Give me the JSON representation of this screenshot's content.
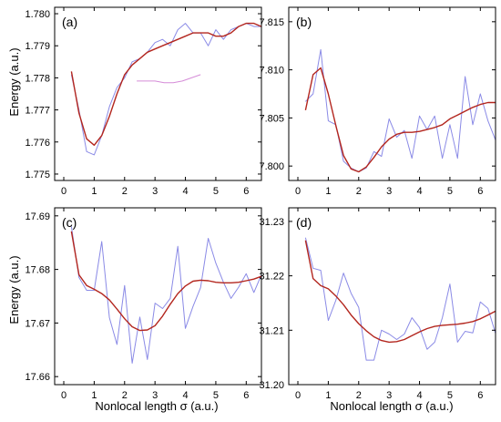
{
  "colors": {
    "raw_series": "#8a8ae6",
    "smooth_series": "#b3261e",
    "axes": "#000000"
  },
  "labels": {
    "ylabel_top": "Energy (a.u.)",
    "ylabel_bottom": "Energy (a.u.)",
    "xlabel_left": "Nonlocal length σ (a.u.)",
    "xlabel_right": "Nonlocal length σ (a.u.)"
  },
  "chart_data": [
    {
      "panel": "(a)",
      "type": "line",
      "xlim": [
        -0.3,
        6.5
      ],
      "ylim": [
        1.7748,
        1.7802
      ],
      "xticks": [
        0,
        1,
        2,
        3,
        4,
        5,
        6
      ],
      "yticks": [
        1.775,
        1.776,
        1.777,
        1.778,
        1.779,
        1.78
      ],
      "ytick_labels": [
        "1.775",
        "1.776",
        "1.777",
        "1.778",
        "1.779",
        "1.780"
      ],
      "series": [
        {
          "x": [
            0.25,
            0.5,
            0.75,
            1.0,
            1.25,
            1.5,
            1.75,
            2.0,
            2.25,
            2.5,
            2.75,
            3.0,
            3.25,
            3.5,
            3.75,
            4.0,
            4.25,
            4.5,
            4.75,
            5.0,
            5.25,
            5.5,
            5.75,
            6.0,
            6.25,
            6.5
          ],
          "y": [
            1.7781,
            1.777,
            1.7757,
            1.7756,
            1.7762,
            1.7771,
            1.7777,
            1.778,
            1.7785,
            1.7786,
            1.7788,
            1.7791,
            1.7792,
            1.779,
            1.7795,
            1.7797,
            1.7794,
            1.7794,
            1.779,
            1.7795,
            1.7792,
            1.7795,
            1.7796,
            1.7797,
            1.7796,
            1.7796
          ]
        },
        {
          "x": [
            0.25,
            0.5,
            0.75,
            1.0,
            1.25,
            1.5,
            1.75,
            2.0,
            2.25,
            2.5,
            2.75,
            3.0,
            3.25,
            3.5,
            3.75,
            4.0,
            4.25,
            4.5,
            4.75,
            5.0,
            5.25,
            5.5,
            5.75,
            6.0,
            6.25,
            6.5
          ],
          "y": [
            1.7782,
            1.7769,
            1.7761,
            1.7759,
            1.7762,
            1.7768,
            1.7775,
            1.7781,
            1.7784,
            1.7786,
            1.7788,
            1.7789,
            1.779,
            1.7791,
            1.7792,
            1.7793,
            1.7794,
            1.7794,
            1.7794,
            1.7793,
            1.7793,
            1.7794,
            1.7796,
            1.7797,
            1.7797,
            1.7796
          ]
        },
        {
          "x": [
            2.4,
            2.7,
            3.0,
            3.3,
            3.6,
            3.9,
            4.2,
            4.5
          ],
          "y": [
            1.7779,
            1.7779,
            1.7779,
            1.77785,
            1.77785,
            1.7779,
            1.778,
            1.7781
          ]
        }
      ]
    },
    {
      "panel": "(b)",
      "type": "line",
      "xlim": [
        -0.3,
        6.5
      ],
      "ylim": [
        7.7985,
        7.8165
      ],
      "xticks": [
        0,
        1,
        2,
        3,
        4,
        5,
        6
      ],
      "yticks": [
        7.8,
        7.805,
        7.81,
        7.815
      ],
      "ytick_labels": [
        "7.800",
        "7.805",
        "7.810",
        "7.815"
      ],
      "series": [
        {
          "x": [
            0.25,
            0.5,
            0.75,
            1.0,
            1.25,
            1.5,
            1.75,
            2.0,
            2.25,
            2.5,
            2.75,
            3.0,
            3.25,
            3.5,
            3.75,
            4.0,
            4.25,
            4.5,
            4.75,
            5.0,
            5.25,
            5.5,
            5.75,
            6.0,
            6.25,
            6.5
          ],
          "y": [
            7.8067,
            7.8075,
            7.8121,
            7.8047,
            7.8043,
            7.8005,
            7.7998,
            7.7994,
            7.7998,
            7.8015,
            7.801,
            7.8049,
            7.803,
            7.8037,
            7.8008,
            7.8052,
            7.8038,
            7.8052,
            7.8008,
            7.8043,
            7.8008,
            7.8093,
            7.8043,
            7.8075,
            7.8047,
            7.8027
          ]
        },
        {
          "x": [
            0.25,
            0.5,
            0.75,
            1.0,
            1.25,
            1.5,
            1.75,
            2.0,
            2.25,
            2.5,
            2.75,
            3.0,
            3.25,
            3.5,
            3.75,
            4.0,
            4.25,
            4.5,
            4.75,
            5.0,
            5.25,
            5.5,
            5.75,
            6.0,
            6.25,
            6.5
          ],
          "y": [
            7.8058,
            7.8095,
            7.8102,
            7.8075,
            7.8042,
            7.8011,
            7.7997,
            7.7994,
            7.7999,
            7.8009,
            7.802,
            7.8028,
            7.8033,
            7.8035,
            7.8035,
            7.8036,
            7.8038,
            7.804,
            7.8043,
            7.8049,
            7.8053,
            7.8057,
            7.8061,
            7.8064,
            7.8066,
            7.8066
          ]
        }
      ]
    },
    {
      "panel": "(c)",
      "type": "line",
      "xlim": [
        -0.3,
        6.5
      ],
      "ylim": [
        17.6585,
        17.6915
      ],
      "xticks": [
        0,
        1,
        2,
        3,
        4,
        5,
        6
      ],
      "yticks": [
        17.66,
        17.67,
        17.68,
        17.69
      ],
      "ytick_labels": [
        "17.66",
        "17.67",
        "17.68",
        "17.69"
      ],
      "series": [
        {
          "x": [
            0.25,
            0.5,
            0.75,
            1.0,
            1.25,
            1.5,
            1.75,
            2.0,
            2.25,
            2.5,
            2.75,
            3.0,
            3.25,
            3.5,
            3.75,
            4.0,
            4.25,
            4.5,
            4.75,
            5.0,
            5.25,
            5.5,
            5.75,
            6.0,
            6.25,
            6.5
          ],
          "y": [
            17.688,
            17.6785,
            17.6761,
            17.6761,
            17.6852,
            17.671,
            17.666,
            17.677,
            17.6625,
            17.6711,
            17.6632,
            17.6737,
            17.6727,
            17.6746,
            17.6843,
            17.669,
            17.6731,
            17.6766,
            17.6858,
            17.6812,
            17.6776,
            17.6746,
            17.6767,
            17.6792,
            17.6757,
            17.679
          ]
        },
        {
          "x": [
            0.25,
            0.5,
            0.75,
            1.0,
            1.25,
            1.5,
            1.75,
            2.0,
            2.25,
            2.5,
            2.75,
            3.0,
            3.25,
            3.5,
            3.75,
            4.0,
            4.25,
            4.5,
            4.75,
            5.0,
            5.25,
            5.5,
            5.75,
            6.0,
            6.25,
            6.5
          ],
          "y": [
            17.6871,
            17.679,
            17.677,
            17.6763,
            17.6755,
            17.6743,
            17.6726,
            17.6708,
            17.6693,
            17.6686,
            17.6687,
            17.6695,
            17.6713,
            17.6735,
            17.6755,
            17.6769,
            17.6778,
            17.678,
            17.6779,
            17.6776,
            17.6775,
            17.6775,
            17.6776,
            17.6779,
            17.6782,
            17.6787
          ]
        }
      ]
    },
    {
      "panel": "(d)",
      "type": "line",
      "xlim": [
        -0.3,
        6.5
      ],
      "ylim": [
        31.2,
        31.2325
      ],
      "xticks": [
        0,
        1,
        2,
        3,
        4,
        5,
        6
      ],
      "yticks": [
        31.2,
        31.21,
        31.22,
        31.23
      ],
      "ytick_labels": [
        "31.20",
        "31.21",
        "31.22",
        "31.23"
      ],
      "series": [
        {
          "x": [
            0.25,
            0.5,
            0.75,
            1.0,
            1.25,
            1.5,
            1.75,
            2.0,
            2.25,
            2.5,
            2.75,
            3.0,
            3.25,
            3.5,
            3.75,
            4.0,
            4.25,
            4.5,
            4.75,
            5.0,
            5.25,
            5.5,
            5.75,
            6.0,
            6.25,
            6.5
          ],
          "y": [
            31.227,
            31.2214,
            31.221,
            31.2118,
            31.2155,
            31.2205,
            31.2168,
            31.2142,
            31.2045,
            31.2045,
            31.21,
            31.2093,
            31.2083,
            31.2093,
            31.2123,
            31.2105,
            31.2065,
            31.2078,
            31.2123,
            31.2185,
            31.2078,
            31.2098,
            31.2095,
            31.2152,
            31.214,
            31.2094
          ]
        },
        {
          "x": [
            0.25,
            0.5,
            0.75,
            1.0,
            1.25,
            1.5,
            1.75,
            2.0,
            2.25,
            2.5,
            2.75,
            3.0,
            3.25,
            3.5,
            3.75,
            4.0,
            4.25,
            4.5,
            4.75,
            5.0,
            5.25,
            5.5,
            5.75,
            6.0,
            6.25,
            6.5
          ],
          "y": [
            31.2265,
            31.2195,
            31.2182,
            31.2176,
            31.2163,
            31.2147,
            31.2128,
            31.2112,
            31.2099,
            31.2088,
            31.2081,
            31.2078,
            31.2079,
            31.2083,
            31.209,
            31.2097,
            31.2103,
            31.2107,
            31.2109,
            31.211,
            31.2111,
            31.2113,
            31.2116,
            31.2121,
            31.2128,
            31.2135
          ]
        }
      ]
    }
  ]
}
